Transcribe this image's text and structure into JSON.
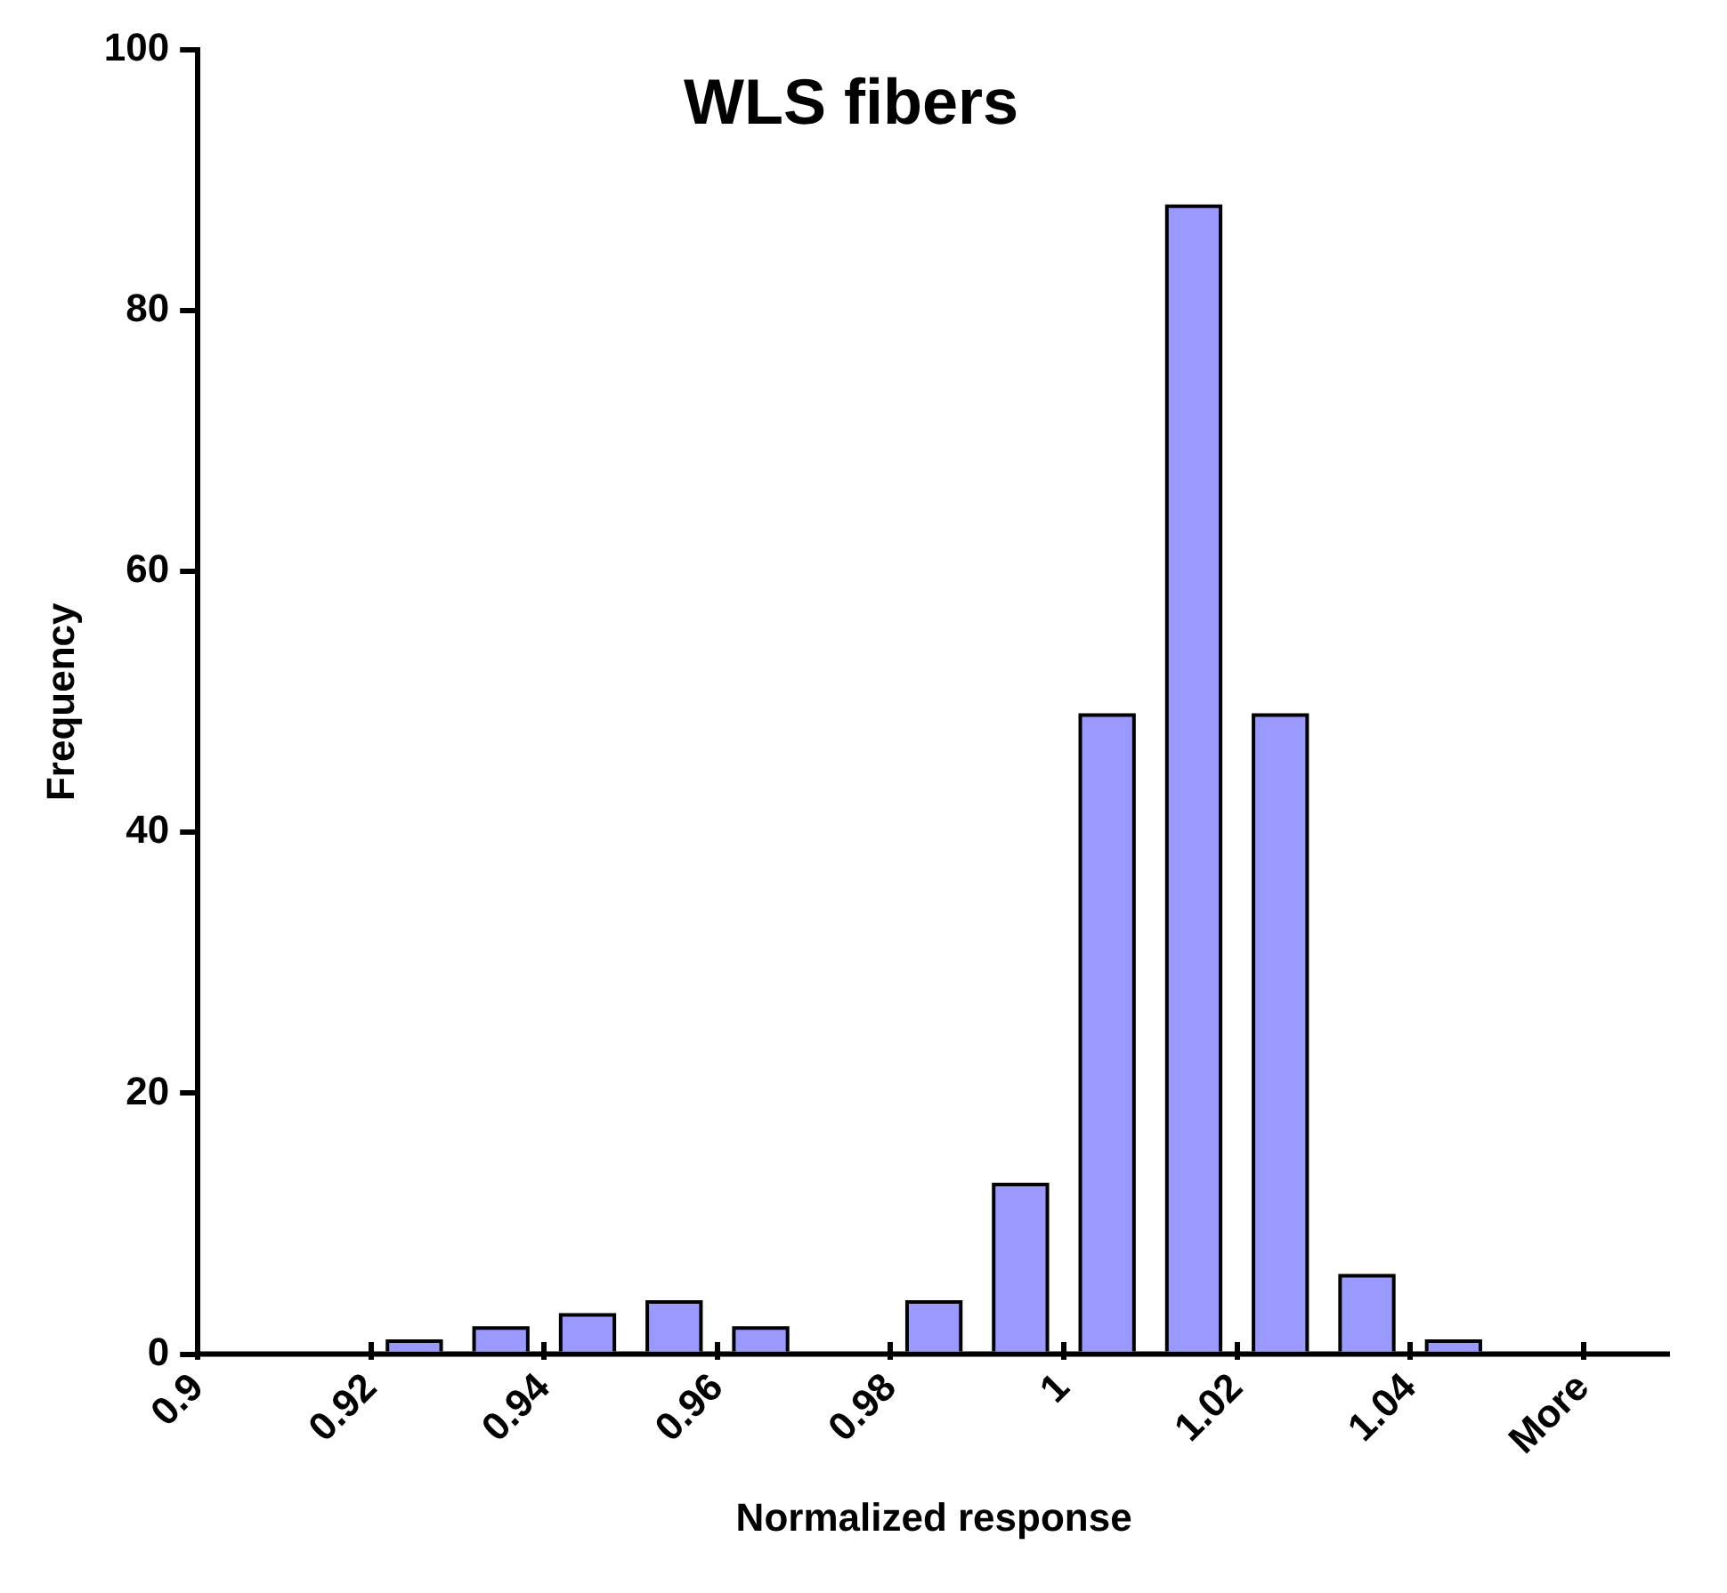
{
  "chart_data": {
    "type": "histogram",
    "title": "WLS fibers",
    "xlabel": "Normalized response",
    "ylabel": "Frequency",
    "bins": [
      0.9,
      0.91,
      0.92,
      0.93,
      0.94,
      0.95,
      0.96,
      0.97,
      0.98,
      0.99,
      1.0,
      1.01,
      1.02,
      1.03,
      1.04,
      1.05,
      1.06
    ],
    "values": [
      0,
      0,
      1,
      2,
      3,
      4,
      2,
      0,
      4,
      13,
      49,
      88,
      49,
      6,
      1,
      0
    ],
    "color": "#9999ff",
    "xlim": [
      0.9,
      1.07
    ],
    "xticks": [
      0.9,
      0.92,
      0.94,
      0.96,
      0.98,
      1,
      1.02,
      1.04,
      {
        "value": 1.06,
        "label": "More"
      }
    ],
    "ylim": [
      0,
      100
    ],
    "yticks": [
      0,
      20,
      40,
      60,
      80,
      100
    ],
    "grid": false,
    "legend": false
  }
}
